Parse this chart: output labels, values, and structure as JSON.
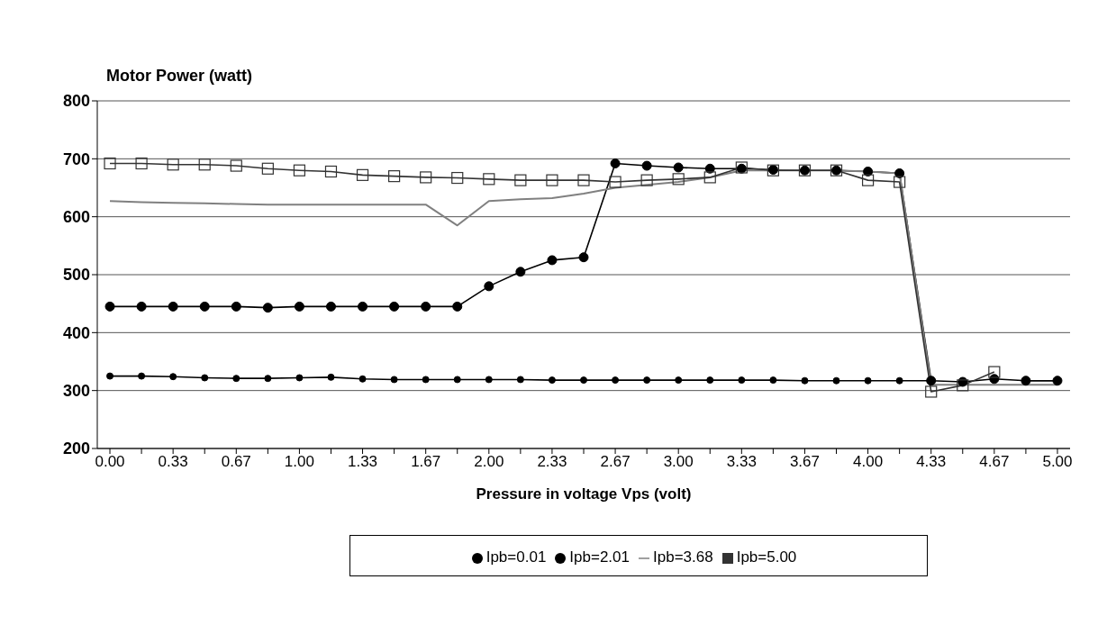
{
  "chart_data": {
    "type": "line",
    "ylabel": "Motor Power (watt)",
    "xlabel": "Pressure in voltage Vps (volt)",
    "categories": [
      "0.00",
      null,
      "0.33",
      null,
      "0.67",
      null,
      "1.00",
      null,
      "1.33",
      null,
      "1.67",
      null,
      "2.00",
      null,
      "2.33",
      null,
      "2.67",
      null,
      "3.00",
      null,
      "3.33",
      null,
      "3.67",
      null,
      "4.00",
      null,
      "4.33",
      null,
      "4.67",
      null,
      "5.00"
    ],
    "ylim": [
      200,
      800
    ],
    "yticks": [
      200,
      300,
      400,
      500,
      600,
      700,
      800
    ],
    "grid": "y",
    "legend": "bottom",
    "line_style": "solid",
    "series": [
      {
        "name": "Ipb=0.01",
        "color": "#000000",
        "marker": "circle",
        "values": [
          325,
          325,
          324,
          322,
          321,
          321,
          322,
          323,
          320,
          319,
          319,
          319,
          319,
          319,
          318,
          318,
          318,
          318,
          318,
          318,
          318,
          318,
          317,
          317,
          317,
          317,
          317,
          null,
          null,
          317,
          317
        ]
      },
      {
        "name": "Ipb=2.01",
        "color": "#000000",
        "marker": "circle",
        "values": [
          445,
          445,
          445,
          445,
          445,
          443,
          445,
          445,
          445,
          445,
          445,
          445,
          480,
          505,
          525,
          530,
          692,
          688,
          685,
          683,
          683,
          681,
          680,
          680,
          678,
          675,
          317,
          315,
          320,
          317,
          317
        ]
      },
      {
        "name": "Ipb=3.68",
        "color": "#808080",
        "marker": "none",
        "values": [
          627,
          625,
          624,
          623,
          622,
          621,
          621,
          621,
          621,
          621,
          621,
          585,
          627,
          630,
          632,
          640,
          650,
          655,
          660,
          668,
          680,
          680,
          680,
          680,
          678,
          675,
          310,
          310,
          310,
          310,
          310
        ]
      },
      {
        "name": "Ipb=5.00",
        "color": "#333333",
        "marker": "square",
        "values": [
          692,
          692,
          690,
          690,
          688,
          683,
          680,
          678,
          672,
          670,
          668,
          667,
          665,
          663,
          663,
          663,
          660,
          663,
          665,
          668,
          685,
          680,
          680,
          680,
          663,
          660,
          298,
          309,
          332,
          null,
          null
        ]
      }
    ]
  }
}
